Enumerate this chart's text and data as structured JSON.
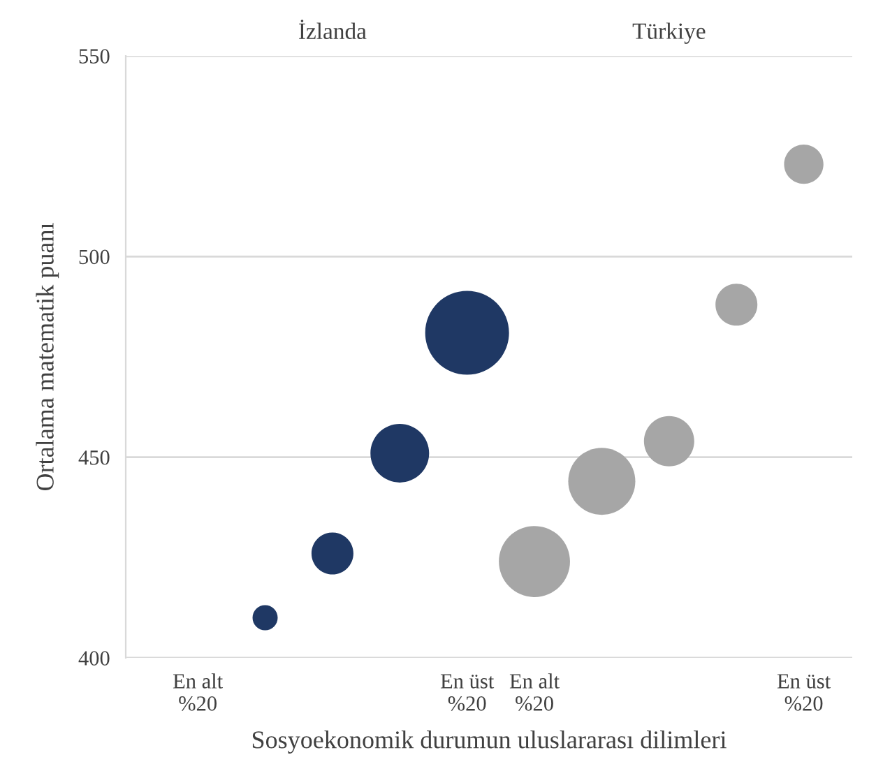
{
  "chart_data": {
    "type": "bubble",
    "xlabel": "Sosyoekonomik durumun uluslararası dilimleri",
    "ylabel": "Ortalama matematik puanı",
    "categories": [
      "En alt\n%20",
      null,
      null,
      null,
      "En üst\n%20",
      "En alt\n%20",
      null,
      null,
      null,
      "En üst\n%20"
    ],
    "series": [
      {
        "color": "#1f3864",
        "values": [
          null,
          410,
          426,
          451,
          481,
          null,
          null,
          null,
          null,
          null
        ],
        "sizes": [
          null,
          0.09,
          0.25,
          0.49,
          1,
          null,
          null,
          null,
          null,
          null
        ]
      },
      {
        "color": "#a6a6a6",
        "values": [
          null,
          null,
          null,
          null,
          null,
          424,
          444,
          454,
          488,
          523
        ],
        "sizes": [
          null,
          null,
          null,
          null,
          null,
          0.72,
          0.64,
          0.36,
          0.25,
          0.22
        ]
      }
    ],
    "annotations": [
      "İzlanda",
      "Türkiye"
    ],
    "ylim": [
      400,
      550
    ],
    "yticks": [
      400,
      450,
      500,
      550
    ],
    "grid": "y"
  }
}
